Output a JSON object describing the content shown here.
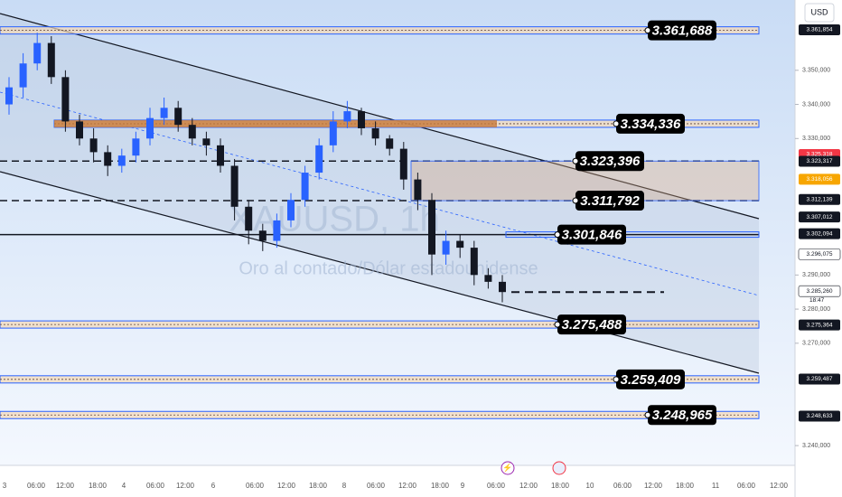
{
  "chart_data": {
    "type": "candlestick",
    "currency": "USD",
    "watermark": "XAUUSD, 1h",
    "watermark_subtitle": "Oro al contado/Dólar estadounidense",
    "x_labels": [
      "3",
      "06:00",
      "12:00",
      "18:00",
      "4",
      "06:00",
      "12:00",
      "6",
      "06:00",
      "12:00",
      "18:00",
      "8",
      "06:00",
      "12:00",
      "18:00",
      "9",
      "06:00",
      "12:00",
      "18:00",
      "10",
      "06:00",
      "12:00",
      "18:00",
      "11",
      "06:00",
      "12:00"
    ],
    "ylim": [
      3.2342,
      3.3706
    ],
    "yticks": [
      {
        "value": 3.24,
        "label": "3.240,000"
      },
      {
        "value": 3.27,
        "label": "3.270,000"
      },
      {
        "value": 3.28,
        "label": "3.280,000"
      },
      {
        "value": 3.29,
        "label": "3.290,000"
      },
      {
        "value": 3.33,
        "label": "3.330,000"
      },
      {
        "value": 3.34,
        "label": "3.340,000"
      },
      {
        "value": 3.35,
        "label": "3.350,000"
      }
    ],
    "open": [
      3.34,
      3.345,
      3.352,
      3.358,
      3.348,
      3.335,
      3.33,
      3.326,
      3.322,
      3.325,
      3.33,
      3.336,
      3.339,
      3.334,
      3.33,
      3.328,
      3.322,
      3.31,
      3.303,
      3.3,
      3.306,
      3.312,
      3.32,
      3.328,
      3.335,
      3.338,
      3.333,
      3.33,
      3.327,
      3.318,
      3.312,
      3.296,
      3.3,
      3.298,
      3.29,
      3.288
    ],
    "high": [
      3.348,
      3.355,
      3.361,
      3.36,
      3.35,
      3.337,
      3.333,
      3.328,
      3.327,
      3.332,
      3.339,
      3.342,
      3.341,
      3.336,
      3.332,
      3.33,
      3.324,
      3.312,
      3.305,
      3.308,
      3.314,
      3.322,
      3.33,
      3.338,
      3.341,
      3.339,
      3.335,
      3.331,
      3.329,
      3.32,
      3.314,
      3.303,
      3.302,
      3.3,
      3.292,
      3.29
    ],
    "low": [
      3.337,
      3.342,
      3.35,
      3.346,
      3.332,
      3.328,
      3.323,
      3.319,
      3.32,
      3.323,
      3.328,
      3.334,
      3.332,
      3.328,
      3.325,
      3.32,
      3.306,
      3.299,
      3.297,
      3.298,
      3.304,
      3.31,
      3.318,
      3.326,
      3.333,
      3.331,
      3.328,
      3.325,
      3.315,
      3.309,
      3.29,
      3.293,
      3.295,
      3.287,
      3.286,
      3.282
    ],
    "close": [
      3.345,
      3.352,
      3.358,
      3.348,
      3.335,
      3.33,
      3.326,
      3.322,
      3.325,
      3.33,
      3.336,
      3.339,
      3.334,
      3.33,
      3.328,
      3.322,
      3.31,
      3.303,
      3.3,
      3.306,
      3.312,
      3.32,
      3.328,
      3.335,
      3.338,
      3.333,
      3.33,
      3.327,
      3.318,
      3.312,
      3.296,
      3.3,
      3.298,
      3.29,
      3.288,
      3.285
    ],
    "up_color": "#2962ff",
    "down_color": "#131722",
    "levels": [
      {
        "value": 3.361688,
        "label": "3.361,688"
      },
      {
        "value": 3.334336,
        "label": "3.334,336"
      },
      {
        "value": 3.323396,
        "label": "3.323,396"
      },
      {
        "value": 3.311792,
        "label": "3.311,792"
      },
      {
        "value": 3.301846,
        "label": "3.301,846"
      },
      {
        "value": 3.275488,
        "label": "3.275,488"
      },
      {
        "value": 3.259409,
        "label": "3.259,409"
      },
      {
        "value": 3.248965,
        "label": "3.248,965"
      }
    ],
    "price_tags": [
      {
        "value": 3.361854,
        "label": "3.361,854",
        "color": "#131722"
      },
      {
        "value": 3.325318,
        "label": "3.325,318",
        "color": "#f23645"
      },
      {
        "value": 3.323317,
        "label": "3.323,317",
        "color": "#131722"
      },
      {
        "value": 3.318056,
        "label": "3.318,056",
        "color": "#f7a600"
      },
      {
        "value": 3.312139,
        "label": "3.312,139",
        "color": "#131722"
      },
      {
        "value": 3.307012,
        "label": "3.307,012",
        "color": "#131722"
      },
      {
        "value": 3.302094,
        "label": "3.302,094",
        "color": "#131722"
      },
      {
        "value": 3.296075,
        "label": "3.296,075",
        "color": "#ffffff"
      },
      {
        "value": 3.28526,
        "label": "3.285,260",
        "color": "#ffffff"
      },
      {
        "value": 3.275364,
        "label": "3.275,364",
        "color": "#131722"
      },
      {
        "value": 3.259487,
        "label": "3.259,487",
        "color": "#131722"
      },
      {
        "value": 3.248633,
        "label": "3.248,633",
        "color": "#131722"
      }
    ],
    "countdown": "18:47"
  }
}
